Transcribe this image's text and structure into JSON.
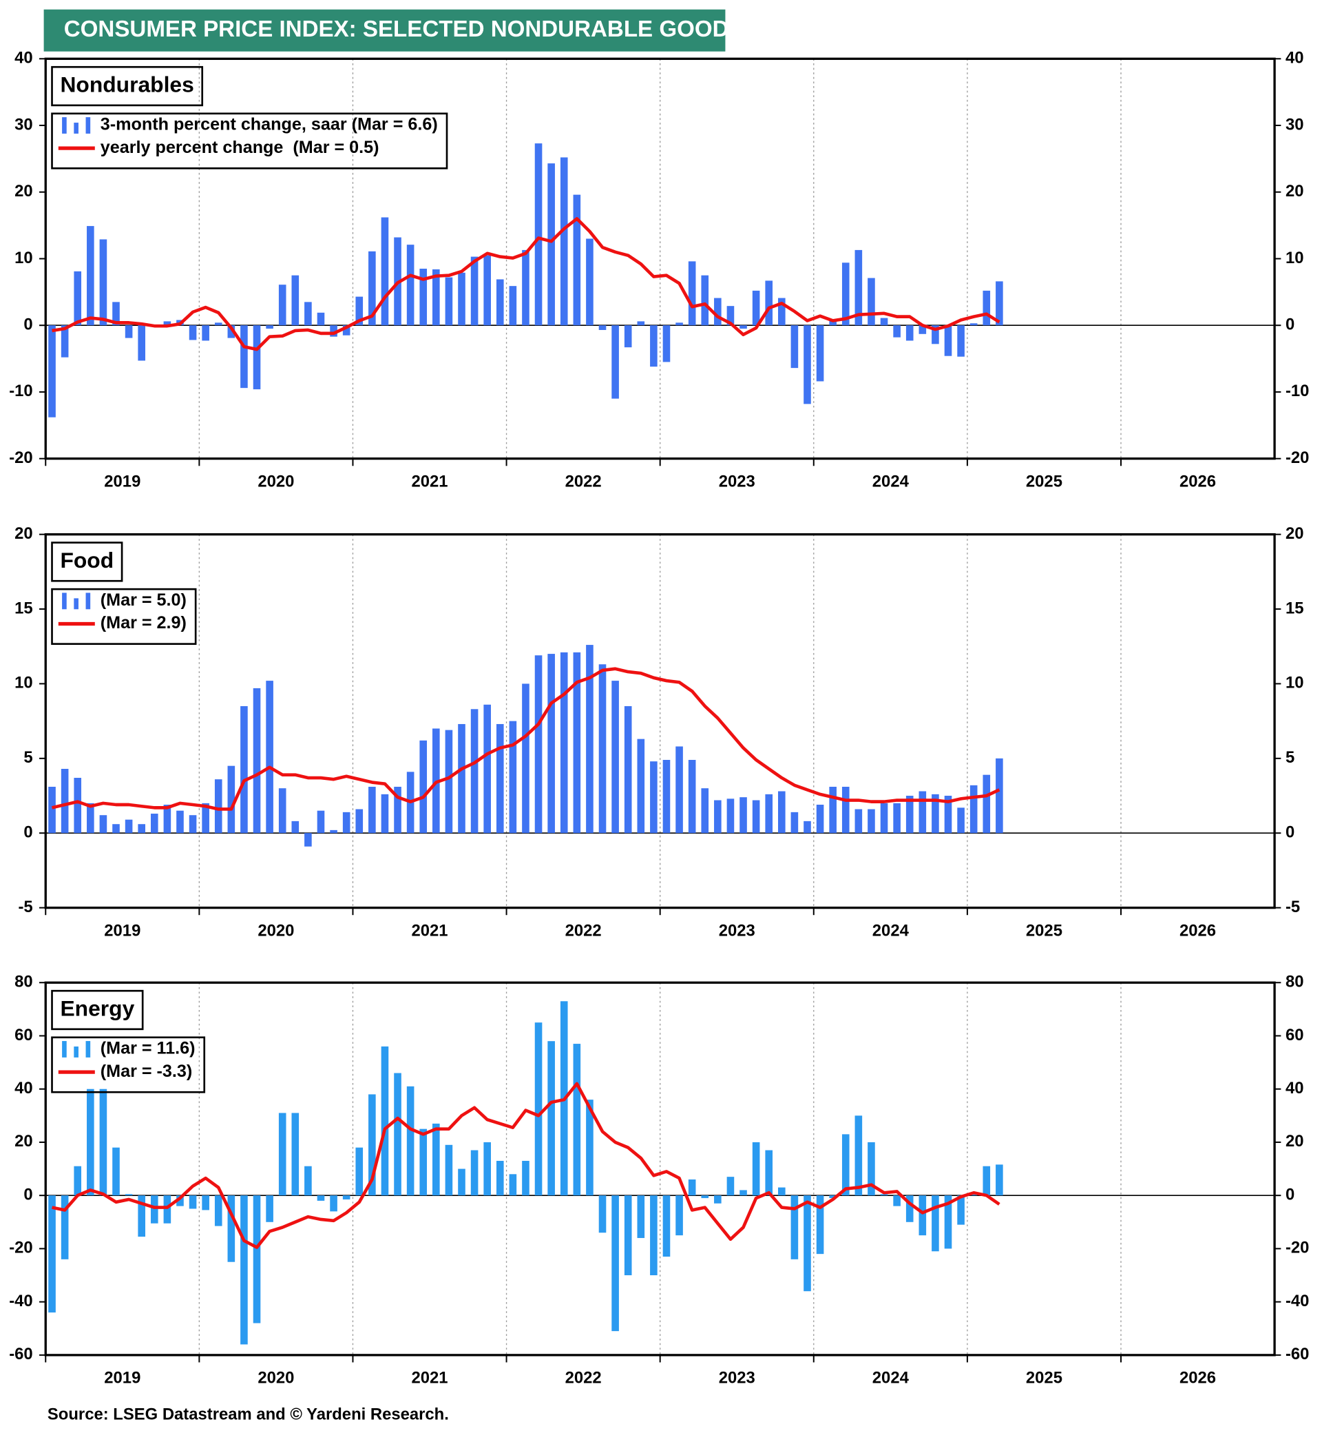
{
  "header": {
    "title": "CONSUMER PRICE INDEX: SELECTED NONDURABLE GOODS"
  },
  "source": "Source: LSEG Datastream and © Yardeni Research.",
  "chart_data": [
    {
      "type": "bar",
      "title": "Nondurables",
      "x": [
        "2019-01",
        "2019-02",
        "2019-03",
        "2019-04",
        "2019-05",
        "2019-06",
        "2019-07",
        "2019-08",
        "2019-09",
        "2019-10",
        "2019-11",
        "2019-12",
        "2020-01",
        "2020-02",
        "2020-03",
        "2020-04",
        "2020-05",
        "2020-06",
        "2020-07",
        "2020-08",
        "2020-09",
        "2020-10",
        "2020-11",
        "2020-12",
        "2021-01",
        "2021-02",
        "2021-03",
        "2021-04",
        "2021-05",
        "2021-06",
        "2021-07",
        "2021-08",
        "2021-09",
        "2021-10",
        "2021-11",
        "2021-12",
        "2022-01",
        "2022-02",
        "2022-03",
        "2022-04",
        "2022-05",
        "2022-06",
        "2022-07",
        "2022-08",
        "2022-09",
        "2022-10",
        "2022-11",
        "2022-12",
        "2023-01",
        "2023-02",
        "2023-03",
        "2023-04",
        "2023-05",
        "2023-06",
        "2023-07",
        "2023-08",
        "2023-09",
        "2023-10",
        "2023-11",
        "2023-12",
        "2024-01",
        "2024-02",
        "2024-03",
        "2024-04",
        "2024-05",
        "2024-06",
        "2024-07",
        "2024-08",
        "2024-09",
        "2024-10",
        "2024-11",
        "2024-12",
        "2025-01",
        "2025-02",
        "2025-03"
      ],
      "series": [
        {
          "name": "3-month percent change, saar (Mar = 6.6)",
          "type": "bar",
          "color": "#3f74f2",
          "values": [
            -13.8,
            -4.8,
            8.1,
            14.9,
            12.9,
            3.5,
            -1.9,
            -5.3,
            0.1,
            0.6,
            0.8,
            -2.2,
            -2.3,
            0.4,
            -1.9,
            -9.4,
            -9.6,
            -0.5,
            6.1,
            7.5,
            3.5,
            1.9,
            -1.7,
            -1.5,
            4.3,
            11.1,
            16.2,
            13.2,
            12.1,
            8.5,
            8.4,
            7.2,
            7.9,
            10.3,
            10.5,
            6.9,
            5.9,
            11.3,
            27.3,
            24.3,
            25.2,
            19.6,
            13.0,
            -0.7,
            -11.0,
            -3.3,
            0.6,
            -6.2,
            -5.5,
            0.4,
            9.6,
            7.5,
            4.1,
            2.9,
            -0.5,
            5.2,
            6.7,
            4.1,
            -6.4,
            -11.8,
            -8.4,
            0.8,
            9.4,
            11.3,
            7.1,
            1.1,
            -1.8,
            -2.3,
            -1.3,
            -2.8,
            -4.6,
            -4.7,
            0.3,
            5.2,
            6.6
          ]
        },
        {
          "name": "yearly percent change  (Mar = 0.5)",
          "type": "line",
          "color": "#ee1111",
          "values": [
            -0.8,
            -0.5,
            0.5,
            1.1,
            0.9,
            0.4,
            0.4,
            0.2,
            -0.1,
            -0.1,
            0.2,
            2.0,
            2.7,
            1.9,
            -0.4,
            -3.2,
            -3.6,
            -1.7,
            -1.6,
            -0.8,
            -0.7,
            -1.2,
            -1.2,
            -0.3,
            0.7,
            1.4,
            4.2,
            6.4,
            7.5,
            6.9,
            7.4,
            7.5,
            8.1,
            9.6,
            10.8,
            10.3,
            10.1,
            10.8,
            13.1,
            12.6,
            14.5,
            16.0,
            14.1,
            11.7,
            11.0,
            10.5,
            9.2,
            7.3,
            7.5,
            6.3,
            2.8,
            3.2,
            1.3,
            0.3,
            -1.4,
            -0.4,
            2.6,
            3.3,
            2.1,
            0.7,
            1.4,
            0.7,
            1.0,
            1.6,
            1.7,
            1.8,
            1.3,
            1.3,
            0.0,
            -0.6,
            -0.1,
            0.8,
            1.3,
            1.7,
            0.5
          ]
        }
      ],
      "xlim": [
        2019,
        2027
      ],
      "xticks": [
        2019,
        2020,
        2021,
        2022,
        2023,
        2024,
        2025,
        2026
      ],
      "ylim": [
        -20,
        40
      ],
      "yticks": [
        -20,
        -10,
        0,
        10,
        20,
        30,
        40
      ],
      "grid": true
    },
    {
      "type": "bar",
      "title": "Food",
      "x": [
        "2019-01",
        "2019-02",
        "2019-03",
        "2019-04",
        "2019-05",
        "2019-06",
        "2019-07",
        "2019-08",
        "2019-09",
        "2019-10",
        "2019-11",
        "2019-12",
        "2020-01",
        "2020-02",
        "2020-03",
        "2020-04",
        "2020-05",
        "2020-06",
        "2020-07",
        "2020-08",
        "2020-09",
        "2020-10",
        "2020-11",
        "2020-12",
        "2021-01",
        "2021-02",
        "2021-03",
        "2021-04",
        "2021-05",
        "2021-06",
        "2021-07",
        "2021-08",
        "2021-09",
        "2021-10",
        "2021-11",
        "2021-12",
        "2022-01",
        "2022-02",
        "2022-03",
        "2022-04",
        "2022-05",
        "2022-06",
        "2022-07",
        "2022-08",
        "2022-09",
        "2022-10",
        "2022-11",
        "2022-12",
        "2023-01",
        "2023-02",
        "2023-03",
        "2023-04",
        "2023-05",
        "2023-06",
        "2023-07",
        "2023-08",
        "2023-09",
        "2023-10",
        "2023-11",
        "2023-12",
        "2024-01",
        "2024-02",
        "2024-03",
        "2024-04",
        "2024-05",
        "2024-06",
        "2024-07",
        "2024-08",
        "2024-09",
        "2024-10",
        "2024-11",
        "2024-12",
        "2025-01",
        "2025-02",
        "2025-03"
      ],
      "series": [
        {
          "name": "(Mar = 5.0)",
          "type": "bar",
          "color": "#3f74f2",
          "values": [
            3.1,
            4.3,
            3.7,
            2.0,
            1.2,
            0.6,
            0.9,
            0.6,
            1.3,
            1.9,
            1.5,
            1.2,
            2.0,
            3.6,
            4.5,
            8.5,
            9.7,
            10.2,
            3.0,
            0.8,
            -0.9,
            1.5,
            0.2,
            1.4,
            1.6,
            3.1,
            2.6,
            3.1,
            4.1,
            6.2,
            7.0,
            6.9,
            7.3,
            8.3,
            8.6,
            7.3,
            7.5,
            10.0,
            11.9,
            12.0,
            12.1,
            12.1,
            12.6,
            11.3,
            10.2,
            8.5,
            6.3,
            4.8,
            4.9,
            5.8,
            4.9,
            3.0,
            2.2,
            2.3,
            2.4,
            2.2,
            2.6,
            2.8,
            1.4,
            0.8,
            1.9,
            3.1,
            3.1,
            1.6,
            1.6,
            2.0,
            2.0,
            2.5,
            2.8,
            2.6,
            2.5,
            1.7,
            3.2,
            3.9,
            5.0
          ]
        },
        {
          "name": "(Mar = 2.9)",
          "type": "line",
          "color": "#ee1111",
          "values": [
            1.7,
            1.9,
            2.1,
            1.8,
            2.0,
            1.9,
            1.9,
            1.8,
            1.7,
            1.7,
            2.0,
            1.9,
            1.8,
            1.6,
            1.6,
            3.5,
            3.9,
            4.4,
            3.9,
            3.9,
            3.7,
            3.7,
            3.6,
            3.8,
            3.6,
            3.4,
            3.3,
            2.4,
            2.1,
            2.4,
            3.4,
            3.7,
            4.3,
            4.7,
            5.3,
            5.7,
            5.9,
            6.5,
            7.3,
            8.7,
            9.3,
            10.1,
            10.4,
            10.9,
            11.0,
            10.8,
            10.7,
            10.4,
            10.2,
            10.1,
            9.5,
            8.5,
            7.7,
            6.7,
            5.7,
            4.9,
            4.3,
            3.7,
            3.2,
            2.9,
            2.6,
            2.4,
            2.2,
            2.2,
            2.1,
            2.1,
            2.2,
            2.2,
            2.2,
            2.2,
            2.1,
            2.3,
            2.4,
            2.5,
            2.9
          ]
        }
      ],
      "xlim": [
        2019,
        2027
      ],
      "xticks": [
        2019,
        2020,
        2021,
        2022,
        2023,
        2024,
        2025,
        2026
      ],
      "ylim": [
        -5,
        20
      ],
      "yticks": [
        -5,
        0,
        5,
        10,
        15,
        20
      ],
      "grid": true
    },
    {
      "type": "bar",
      "title": "Energy",
      "x": [
        "2019-01",
        "2019-02",
        "2019-03",
        "2019-04",
        "2019-05",
        "2019-06",
        "2019-07",
        "2019-08",
        "2019-09",
        "2019-10",
        "2019-11",
        "2019-12",
        "2020-01",
        "2020-02",
        "2020-03",
        "2020-04",
        "2020-05",
        "2020-06",
        "2020-07",
        "2020-08",
        "2020-09",
        "2020-10",
        "2020-11",
        "2020-12",
        "2021-01",
        "2021-02",
        "2021-03",
        "2021-04",
        "2021-05",
        "2021-06",
        "2021-07",
        "2021-08",
        "2021-09",
        "2021-10",
        "2021-11",
        "2021-12",
        "2022-01",
        "2022-02",
        "2022-03",
        "2022-04",
        "2022-05",
        "2022-06",
        "2022-07",
        "2022-08",
        "2022-09",
        "2022-10",
        "2022-11",
        "2022-12",
        "2023-01",
        "2023-02",
        "2023-03",
        "2023-04",
        "2023-05",
        "2023-06",
        "2023-07",
        "2023-08",
        "2023-09",
        "2023-10",
        "2023-11",
        "2023-12",
        "2024-01",
        "2024-02",
        "2024-03",
        "2024-04",
        "2024-05",
        "2024-06",
        "2024-07",
        "2024-08",
        "2024-09",
        "2024-10",
        "2024-11",
        "2024-12",
        "2025-01",
        "2025-02",
        "2025-03"
      ],
      "series": [
        {
          "name": "(Mar = 11.6)",
          "type": "bar",
          "color": "#2b9af0",
          "values": [
            -44,
            -24,
            11,
            40,
            40,
            18,
            0.5,
            -15.5,
            -10.5,
            -10.5,
            -4,
            -5,
            -5.5,
            -11.5,
            -25,
            -56,
            -48,
            -10,
            31,
            31,
            11,
            -2,
            -6,
            -1.5,
            18,
            38,
            56,
            46,
            41,
            25,
            27,
            19,
            10,
            17,
            20,
            13,
            8,
            13,
            65,
            58,
            73,
            57,
            36,
            -14,
            -51,
            -30,
            -16,
            -30,
            -23,
            -15,
            6,
            -1,
            -3,
            7,
            2,
            20,
            17,
            3,
            -24,
            -36,
            -22,
            -1,
            23,
            30,
            20,
            0.5,
            -4,
            -10,
            -15,
            -21,
            -20,
            -11,
            0.5,
            11,
            11.6
          ]
        },
        {
          "name": "(Mar = -3.3)",
          "type": "line",
          "color": "#ee1111",
          "values": [
            -4.5,
            -5.5,
            0,
            2,
            0.5,
            -2.5,
            -1.5,
            -3,
            -4.5,
            -4.5,
            -1,
            3.5,
            6.5,
            3,
            -7,
            -17,
            -19.5,
            -13.5,
            -12,
            -10,
            -8,
            -9,
            -9.5,
            -6.5,
            -2.5,
            6,
            25,
            29,
            25,
            23,
            25,
            25,
            30,
            33,
            28.5,
            27,
            25.5,
            32,
            30,
            35,
            36,
            42,
            33,
            24,
            20,
            18,
            14,
            7.5,
            9,
            6.5,
            -5.5,
            -4.5,
            -10.5,
            -16.5,
            -12,
            -1,
            1,
            -4.5,
            -5,
            -2.5,
            -4.5,
            -1.5,
            2.5,
            3,
            4,
            1,
            1.5,
            -3,
            -6.5,
            -4.5,
            -3,
            -0.5,
            1,
            0,
            -3.3
          ]
        }
      ],
      "xlim": [
        2019,
        2027
      ],
      "xticks": [
        2019,
        2020,
        2021,
        2022,
        2023,
        2024,
        2025,
        2026
      ],
      "ylim": [
        -60,
        80
      ],
      "yticks": [
        -60,
        -40,
        -20,
        0,
        20,
        40,
        60,
        80
      ],
      "grid": true
    }
  ]
}
